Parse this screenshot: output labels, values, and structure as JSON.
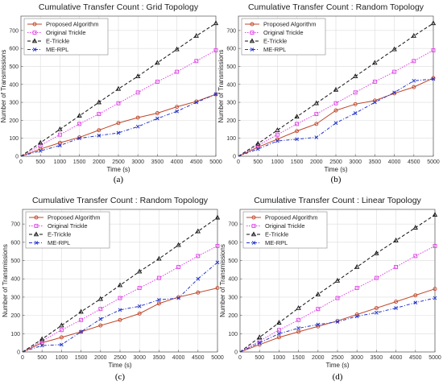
{
  "chart_data": [
    {
      "type": "line",
      "panel": "(a)",
      "title": "Cumulative Transfer Count : Grid Topology",
      "xlabel": "Time (s)",
      "ylabel": "Number of Transmissions",
      "xlim": [
        0,
        5000
      ],
      "ylim": [
        0,
        780
      ],
      "xticks": [
        0,
        500,
        1000,
        1500,
        2000,
        2500,
        3000,
        3500,
        4000,
        4500,
        5000
      ],
      "yticks": [
        0,
        100,
        200,
        300,
        400,
        500,
        600,
        700
      ],
      "grid": true,
      "legend": "top-left",
      "x": [
        0,
        500,
        1000,
        1500,
        2000,
        2500,
        3000,
        3500,
        4000,
        4500,
        5000
      ],
      "series": [
        {
          "name": "Proposed Algorithm",
          "color": "#c0462a",
          "marker": "circle",
          "dash": "solid",
          "values": [
            0,
            40,
            75,
            105,
            145,
            185,
            215,
            240,
            275,
            305,
            345
          ]
        },
        {
          "name": "Original Trickle",
          "color": "#e040e8",
          "marker": "square",
          "dash": "dotted",
          "values": [
            0,
            60,
            120,
            180,
            235,
            295,
            355,
            415,
            470,
            530,
            590
          ]
        },
        {
          "name": "E-Trickle",
          "color": "#111111",
          "marker": "triangle",
          "dash": "dashed",
          "values": [
            0,
            75,
            150,
            225,
            300,
            375,
            445,
            520,
            595,
            670,
            740
          ]
        },
        {
          "name": "ME-RPL",
          "color": "#2233cc",
          "marker": "x",
          "dash": "dashdot",
          "values": [
            0,
            30,
            60,
            100,
            115,
            130,
            165,
            210,
            250,
            300,
            345
          ]
        }
      ]
    },
    {
      "type": "line",
      "panel": "(b)",
      "title": "Cumulative Transfer Count : Random Topology",
      "xlabel": "Time (s)",
      "ylabel": "Number of Transmissions",
      "xlim": [
        0,
        5000
      ],
      "ylim": [
        0,
        780
      ],
      "xticks": [
        0,
        500,
        1000,
        1500,
        2000,
        2500,
        3000,
        3500,
        4000,
        4500,
        5000
      ],
      "yticks": [
        0,
        100,
        200,
        300,
        400,
        500,
        600,
        700
      ],
      "grid": true,
      "legend": "top-left",
      "x": [
        0,
        500,
        1000,
        1500,
        2000,
        2500,
        3000,
        3500,
        4000,
        4500,
        5000
      ],
      "series": [
        {
          "name": "Proposed Algorithm",
          "color": "#c0462a",
          "marker": "circle",
          "dash": "solid",
          "values": [
            0,
            50,
            95,
            140,
            180,
            255,
            290,
            310,
            350,
            385,
            435
          ]
        },
        {
          "name": "Original Trickle",
          "color": "#e040e8",
          "marker": "square",
          "dash": "dotted",
          "values": [
            0,
            60,
            120,
            180,
            235,
            295,
            355,
            415,
            470,
            530,
            590
          ]
        },
        {
          "name": "E-Trickle",
          "color": "#111111",
          "marker": "triangle",
          "dash": "dashed",
          "values": [
            0,
            70,
            145,
            220,
            295,
            370,
            445,
            520,
            595,
            670,
            740
          ]
        },
        {
          "name": "ME-RPL",
          "color": "#2233cc",
          "marker": "x",
          "dash": "dashdot",
          "values": [
            0,
            40,
            85,
            95,
            105,
            185,
            240,
            300,
            355,
            420,
            430
          ]
        }
      ]
    },
    {
      "type": "line",
      "panel": "(c)",
      "title": "Cumulative Transfer Count : Random Topology",
      "xlabel": "Time (s)",
      "ylabel": "Number of Transmissions",
      "xlim": [
        0,
        5000
      ],
      "ylim": [
        0,
        780
      ],
      "xticks": [
        0,
        500,
        1000,
        1500,
        2000,
        2500,
        3000,
        3500,
        4000,
        4500,
        5000
      ],
      "yticks": [
        0,
        100,
        200,
        300,
        400,
        500,
        600,
        700
      ],
      "grid": true,
      "legend": "top-left",
      "x": [
        0,
        500,
        1000,
        1500,
        2000,
        2500,
        3000,
        3500,
        4000,
        4500,
        5000
      ],
      "series": [
        {
          "name": "Proposed Algorithm",
          "color": "#c0462a",
          "marker": "circle",
          "dash": "solid",
          "values": [
            0,
            50,
            80,
            110,
            145,
            175,
            210,
            265,
            300,
            325,
            350
          ]
        },
        {
          "name": "Original Trickle",
          "color": "#e040e8",
          "marker": "square",
          "dash": "dotted",
          "values": [
            0,
            60,
            120,
            175,
            235,
            295,
            350,
            405,
            465,
            525,
            580
          ]
        },
        {
          "name": "E-Trickle",
          "color": "#111111",
          "marker": "triangle",
          "dash": "dashed",
          "values": [
            0,
            70,
            145,
            220,
            290,
            365,
            440,
            510,
            585,
            660,
            735
          ]
        },
        {
          "name": "ME-RPL",
          "color": "#2233cc",
          "marker": "x",
          "dash": "dashdot",
          "values": [
            0,
            35,
            40,
            110,
            180,
            230,
            250,
            285,
            295,
            400,
            490
          ]
        }
      ]
    },
    {
      "type": "line",
      "panel": "(d)",
      "title": "Cumulative Transfer Count : Linear Topology",
      "xlabel": "Time (s)",
      "ylabel": "Number of Transmissions",
      "xlim": [
        0,
        5000
      ],
      "ylim": [
        0,
        780
      ],
      "xticks": [
        0,
        500,
        1000,
        1500,
        2000,
        2500,
        3000,
        3500,
        4000,
        4500,
        5000
      ],
      "yticks": [
        0,
        100,
        200,
        300,
        400,
        500,
        600,
        700
      ],
      "grid": true,
      "legend": "top-left",
      "x": [
        0,
        500,
        1000,
        1500,
        2000,
        2500,
        3000,
        3500,
        4000,
        4500,
        5000
      ],
      "series": [
        {
          "name": "Proposed Algorithm",
          "color": "#c0462a",
          "marker": "circle",
          "dash": "solid",
          "values": [
            0,
            40,
            80,
            110,
            140,
            170,
            205,
            240,
            275,
            310,
            345
          ]
        },
        {
          "name": "Original Trickle",
          "color": "#e040e8",
          "marker": "square",
          "dash": "dotted",
          "values": [
            0,
            60,
            120,
            175,
            235,
            295,
            350,
            405,
            465,
            525,
            580
          ]
        },
        {
          "name": "E-Trickle",
          "color": "#111111",
          "marker": "triangle",
          "dash": "dashed",
          "values": [
            0,
            80,
            160,
            240,
            315,
            390,
            465,
            540,
            610,
            680,
            750
          ]
        },
        {
          "name": "ME-RPL",
          "color": "#2233cc",
          "marker": "x",
          "dash": "dashdot",
          "values": [
            0,
            50,
            100,
            130,
            150,
            165,
            195,
            215,
            240,
            270,
            295
          ]
        }
      ]
    }
  ]
}
